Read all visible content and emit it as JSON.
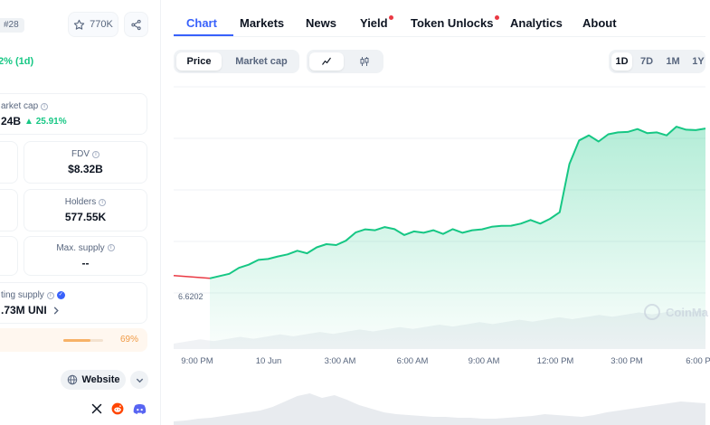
{
  "coin": {
    "rank": "#28",
    "watchlist_count": "770K",
    "price_change": "2% (1d)"
  },
  "stats": {
    "market_cap": {
      "label": "arket cap",
      "value": "24B",
      "change": "25.91%"
    },
    "fdv": {
      "label": "FDV",
      "value": "$8.32B"
    },
    "holders": {
      "label": "Holders",
      "value": "577.55K"
    },
    "max_supply": {
      "label": "Max. supply",
      "value": "--"
    },
    "circulating_supply": {
      "label": "ting supply",
      "value": ".73M UNI",
      "percent": "69%",
      "percent_value": 69
    }
  },
  "links": {
    "website": "Website"
  },
  "icons": {
    "watch": "star-icon",
    "share": "share-icon",
    "website": "globe-icon",
    "more": "chevron-down-icon",
    "x": "x-icon",
    "reddit": "reddit-icon",
    "discord": "discord-icon",
    "line": "line-chart-icon",
    "candle": "candlestick-icon",
    "verified": "verified-icon",
    "info": "info-icon"
  },
  "tabs": [
    {
      "label": "Chart",
      "active": true,
      "dot": false
    },
    {
      "label": "Markets",
      "active": false,
      "dot": false
    },
    {
      "label": "News",
      "active": false,
      "dot": false
    },
    {
      "label": "Yield",
      "active": false,
      "dot": true
    },
    {
      "label": "Token Unlocks",
      "active": false,
      "dot": true
    },
    {
      "label": "Analytics",
      "active": false,
      "dot": false
    },
    {
      "label": "About",
      "active": false,
      "dot": false
    }
  ],
  "chart_controls": {
    "modes": [
      "Price",
      "Market cap"
    ],
    "active_mode": "Price",
    "ranges": [
      "1D",
      "7D",
      "1M",
      "1Y"
    ],
    "active_range": "1D"
  },
  "colors": {
    "accent": "#3861fb",
    "positive": "#16c784",
    "negative": "#ea3943",
    "text": "#0d1421",
    "muted": "#58667e"
  },
  "chart_data": {
    "type": "area",
    "x_tick_labels": [
      "9:00 PM",
      "10 Jun",
      "3:00 AM",
      "6:00 AM",
      "9:00 AM",
      "12:00 PM",
      "3:00 PM",
      "6:00 P"
    ],
    "x": [
      0,
      1.5,
      3,
      4.5,
      6,
      7.5,
      9,
      10.5,
      12,
      13.5,
      15,
      16.5,
      18,
      19.5,
      21,
      22.5,
      24,
      25.5,
      27,
      28.5,
      30,
      31.5,
      33,
      34.5,
      36,
      37.5,
      39,
      40.5,
      42,
      43.5,
      45,
      46.5,
      48,
      49.5,
      51,
      52.5,
      54,
      55.5,
      57,
      58.5,
      60,
      61.5,
      63,
      64.5,
      66,
      67.5,
      69,
      70.5,
      72,
      73.5,
      75,
      76.5
    ],
    "y": [
      6.6202,
      6.628,
      6.66,
      6.7,
      6.74,
      6.77,
      6.79,
      6.8,
      6.83,
      6.85,
      6.84,
      6.88,
      6.92,
      6.9,
      6.95,
      7.01,
      7.05,
      7.03,
      7.07,
      7.04,
      7.0,
      7.02,
      7.02,
      7.03,
      7.01,
      7.04,
      7.02,
      7.03,
      7.05,
      7.06,
      7.08,
      7.07,
      7.1,
      7.12,
      7.1,
      7.13,
      7.2,
      7.6,
      7.83,
      7.85,
      7.82,
      7.86,
      7.9,
      7.88,
      7.93,
      7.87,
      7.9,
      7.85,
      7.95,
      7.9,
      7.92,
      7.91
    ],
    "price_label": "6.6202",
    "watermark": "CoinMa",
    "ylim": [
      6.0,
      8.3
    ],
    "grid": true,
    "line_color": "#16c784"
  }
}
